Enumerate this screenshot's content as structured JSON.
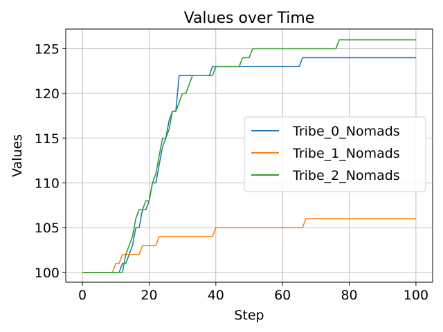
{
  "chart_data": {
    "type": "line",
    "title": "Values over Time",
    "xlabel": "Step",
    "ylabel": "Values",
    "xlim": [
      -5,
      105
    ],
    "ylim": [
      98.9,
      127.2
    ],
    "xticks": [
      0,
      20,
      40,
      60,
      80,
      100
    ],
    "yticks": [
      100,
      105,
      110,
      115,
      120,
      125
    ],
    "grid": true,
    "legend_position": "center-right",
    "series": [
      {
        "name": "Tribe_0_Nomads",
        "color": "#1f77b4",
        "points": [
          [
            0,
            100
          ],
          [
            11,
            100
          ],
          [
            12,
            101
          ],
          [
            13,
            101
          ],
          [
            14,
            102
          ],
          [
            15,
            103
          ],
          [
            16,
            105
          ],
          [
            17,
            105
          ],
          [
            18,
            107
          ],
          [
            19,
            107
          ],
          [
            20,
            108
          ],
          [
            21,
            110
          ],
          [
            22,
            110
          ],
          [
            23,
            112
          ],
          [
            24,
            114
          ],
          [
            25,
            115
          ],
          [
            26,
            117
          ],
          [
            27,
            118
          ],
          [
            28,
            118
          ],
          [
            29,
            122
          ],
          [
            30,
            122
          ],
          [
            31,
            122
          ],
          [
            32,
            122
          ],
          [
            33,
            122
          ],
          [
            34,
            122
          ],
          [
            35,
            122
          ],
          [
            36,
            122
          ],
          [
            37,
            122
          ],
          [
            38,
            122
          ],
          [
            39,
            123
          ],
          [
            40,
            123
          ],
          [
            50,
            123
          ],
          [
            60,
            123
          ],
          [
            65,
            123
          ],
          [
            66,
            124
          ],
          [
            80,
            124
          ],
          [
            90,
            124
          ],
          [
            100,
            124
          ]
        ]
      },
      {
        "name": "Tribe_1_Nomads",
        "color": "#ff7f0e",
        "points": [
          [
            0,
            100
          ],
          [
            9,
            100
          ],
          [
            10,
            101
          ],
          [
            11,
            101
          ],
          [
            12,
            102
          ],
          [
            13,
            102
          ],
          [
            14,
            102
          ],
          [
            15,
            102
          ],
          [
            16,
            102
          ],
          [
            17,
            102
          ],
          [
            18,
            103
          ],
          [
            19,
            103
          ],
          [
            20,
            103
          ],
          [
            21,
            103
          ],
          [
            22,
            103
          ],
          [
            23,
            104
          ],
          [
            24,
            104
          ],
          [
            30,
            104
          ],
          [
            35,
            104
          ],
          [
            39,
            104
          ],
          [
            40,
            105
          ],
          [
            50,
            105
          ],
          [
            60,
            105
          ],
          [
            66,
            105
          ],
          [
            67,
            106
          ],
          [
            80,
            106
          ],
          [
            90,
            106
          ],
          [
            100,
            106
          ]
        ]
      },
      {
        "name": "Tribe_2_Nomads",
        "color": "#2ca02c",
        "points": [
          [
            0,
            100
          ],
          [
            12,
            100
          ],
          [
            13,
            102
          ],
          [
            14,
            103
          ],
          [
            15,
            104
          ],
          [
            16,
            106
          ],
          [
            17,
            107
          ],
          [
            18,
            107
          ],
          [
            19,
            108
          ],
          [
            20,
            108
          ],
          [
            21,
            110
          ],
          [
            22,
            111
          ],
          [
            23,
            113
          ],
          [
            24,
            115
          ],
          [
            25,
            115
          ],
          [
            26,
            116
          ],
          [
            27,
            118
          ],
          [
            28,
            118
          ],
          [
            29,
            119
          ],
          [
            30,
            120
          ],
          [
            31,
            120
          ],
          [
            32,
            121
          ],
          [
            33,
            122
          ],
          [
            34,
            122
          ],
          [
            35,
            122
          ],
          [
            36,
            122
          ],
          [
            37,
            122
          ],
          [
            38,
            122
          ],
          [
            39,
            122
          ],
          [
            40,
            123
          ],
          [
            45,
            123
          ],
          [
            47,
            123
          ],
          [
            48,
            124
          ],
          [
            49,
            124
          ],
          [
            50,
            124
          ],
          [
            51,
            125
          ],
          [
            60,
            125
          ],
          [
            70,
            125
          ],
          [
            76,
            125
          ],
          [
            77,
            126
          ],
          [
            80,
            126
          ],
          [
            90,
            126
          ],
          [
            100,
            126
          ]
        ]
      }
    ]
  }
}
